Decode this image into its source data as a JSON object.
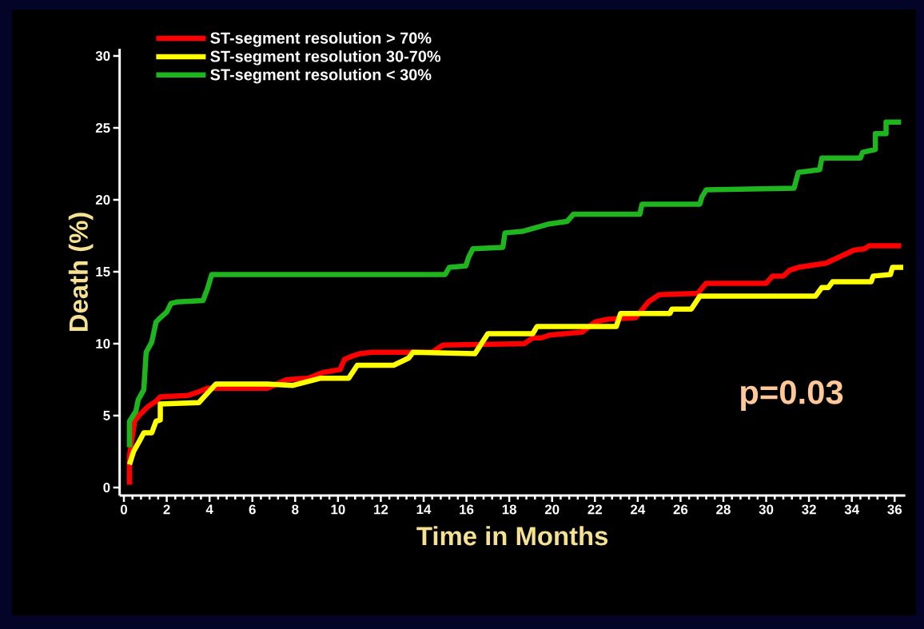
{
  "chart_data": {
    "type": "step",
    "xlabel": "Time in Months",
    "ylabel": "Death (%)",
    "xlim": [
      -0.2,
      36.5
    ],
    "ylim": [
      -0.55,
      30.5
    ],
    "xticks": [
      0,
      2,
      4,
      6,
      8,
      10,
      12,
      14,
      16,
      18,
      20,
      22,
      24,
      26,
      28,
      30,
      32,
      34,
      36
    ],
    "yticks": [
      0,
      5,
      10,
      15,
      20,
      25,
      30
    ],
    "grid": false,
    "legend": "top left",
    "annotations": [
      "p=0.03"
    ],
    "series": [
      {
        "name": "ST-segment resolution   > 70%",
        "color": "#ff0000",
        "x": [
          0.26,
          0.26,
          0.5,
          0.7,
          1.1,
          1.5,
          1.7,
          3.0,
          3.4,
          3.9,
          4.2,
          6.7,
          7.6,
          8.6,
          9.3,
          10.1,
          10.3,
          10.6,
          11.0,
          11.6,
          14.4,
          14.9,
          18.7,
          19.1,
          19.5,
          19.9,
          21.4,
          22.0,
          22.6,
          23.9,
          24.5,
          25.0,
          26.8,
          27.2,
          30.0,
          30.3,
          30.8,
          31.1,
          31.5,
          32.8,
          34.1,
          34.6,
          34.8,
          36.3
        ],
        "values": [
          0.2,
          2.2,
          4.6,
          5.0,
          5.6,
          6.0,
          6.3,
          6.4,
          6.6,
          6.9,
          6.9,
          6.9,
          7.5,
          7.6,
          8.0,
          8.2,
          8.9,
          9.1,
          9.3,
          9.4,
          9.4,
          9.9,
          10.0,
          10.4,
          10.4,
          10.6,
          10.8,
          11.5,
          11.7,
          11.8,
          12.9,
          13.4,
          13.5,
          14.2,
          14.2,
          14.7,
          14.7,
          15.1,
          15.3,
          15.6,
          16.5,
          16.6,
          16.8,
          16.8
        ]
      },
      {
        "name": "ST-segment resolution 30-70%",
        "color": "#ffff00",
        "x": [
          0.26,
          0.45,
          0.75,
          0.93,
          1.3,
          1.5,
          1.7,
          1.7,
          3.5,
          4.3,
          6.7,
          7.9,
          9.2,
          10.5,
          10.9,
          12.6,
          13.3,
          13.5,
          16.4,
          17.0,
          19.1,
          19.3,
          23.0,
          23.2,
          25.5,
          25.6,
          26.5,
          26.9,
          32.3,
          32.6,
          32.9,
          33.1,
          34.9,
          35.0,
          35.8,
          35.9,
          36.4
        ],
        "values": [
          1.6,
          2.5,
          3.3,
          3.8,
          3.8,
          4.6,
          4.7,
          5.8,
          5.9,
          7.2,
          7.2,
          7.1,
          7.6,
          7.6,
          8.5,
          8.5,
          9.0,
          9.4,
          9.3,
          10.7,
          10.7,
          11.2,
          11.2,
          12.1,
          12.1,
          12.4,
          12.4,
          13.3,
          13.3,
          13.9,
          13.9,
          14.3,
          14.3,
          14.7,
          14.8,
          15.3,
          15.3
        ]
      },
      {
        "name": "ST-segment resolution   < 30%",
        "color": "#1fb51f",
        "x": [
          0.26,
          0.26,
          0.56,
          0.67,
          0.93,
          1.04,
          1.3,
          1.5,
          1.7,
          2.0,
          2.2,
          2.5,
          3.7,
          3.9,
          4.1,
          15.0,
          15.2,
          15.97,
          16.1,
          16.3,
          17.7,
          17.8,
          18.6,
          19.8,
          20.7,
          21.0,
          24.1,
          24.2,
          26.9,
          27.0,
          27.2,
          31.3,
          31.5,
          32.5,
          32.6,
          34.4,
          34.5,
          35.1,
          35.1,
          35.6,
          35.6,
          36.3
        ],
        "values": [
          2.8,
          4.6,
          5.3,
          6.1,
          6.8,
          9.4,
          10.1,
          11.5,
          11.8,
          12.2,
          12.8,
          12.9,
          13.0,
          13.8,
          14.8,
          14.8,
          15.3,
          15.4,
          16.0,
          16.6,
          16.7,
          17.7,
          17.8,
          18.3,
          18.5,
          19.0,
          19.0,
          19.7,
          19.7,
          20.2,
          20.7,
          20.8,
          21.9,
          22.1,
          22.9,
          22.9,
          23.3,
          23.5,
          24.6,
          24.6,
          25.4,
          25.4
        ]
      }
    ]
  }
}
